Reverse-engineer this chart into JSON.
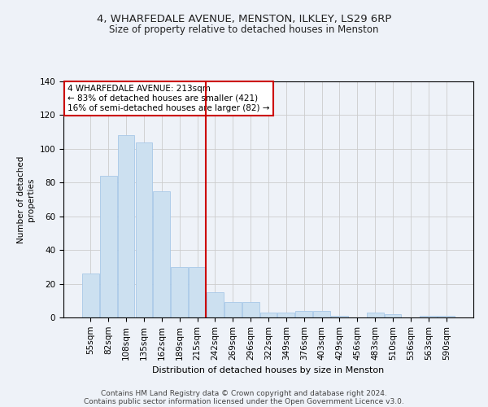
{
  "title": "4, WHARFEDALE AVENUE, MENSTON, ILKLEY, LS29 6RP",
  "subtitle": "Size of property relative to detached houses in Menston",
  "xlabel": "Distribution of detached houses by size in Menston",
  "ylabel": "Number of detached\nproperties",
  "categories": [
    "55sqm",
    "82sqm",
    "108sqm",
    "135sqm",
    "162sqm",
    "189sqm",
    "215sqm",
    "242sqm",
    "269sqm",
    "296sqm",
    "322sqm",
    "349sqm",
    "376sqm",
    "403sqm",
    "429sqm",
    "456sqm",
    "483sqm",
    "510sqm",
    "536sqm",
    "563sqm",
    "590sqm"
  ],
  "values": [
    26,
    84,
    108,
    104,
    75,
    30,
    30,
    15,
    9,
    9,
    3,
    3,
    4,
    4,
    1,
    0,
    3,
    2,
    0,
    1,
    1
  ],
  "bar_color": "#cce0f0",
  "bar_edge_color": "#a8c8e8",
  "vline_color": "#cc0000",
  "annotation_text": "4 WHARFEDALE AVENUE: 213sqm\n← 83% of detached houses are smaller (421)\n16% of semi-detached houses are larger (82) →",
  "annotation_box_color": "#ffffff",
  "annotation_box_edge_color": "#cc0000",
  "ylim": [
    0,
    140
  ],
  "yticks": [
    0,
    20,
    40,
    60,
    80,
    100,
    120,
    140
  ],
  "grid_color": "#cccccc",
  "bg_color": "#eef2f8",
  "footer_line1": "Contains HM Land Registry data © Crown copyright and database right 2024.",
  "footer_line2": "Contains public sector information licensed under the Open Government Licence v3.0."
}
